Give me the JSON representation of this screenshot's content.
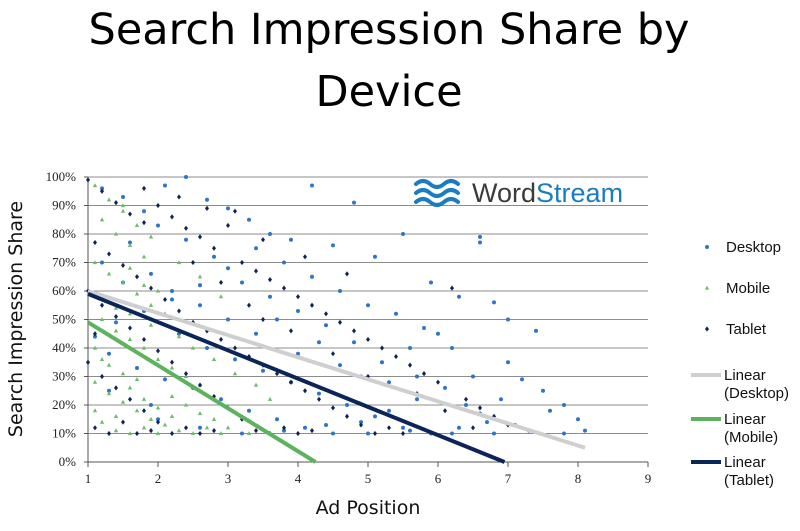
{
  "chart_data": {
    "type": "scatter",
    "title_lines": [
      "Search Impression Share by",
      "Device"
    ],
    "xlabel": "Ad Position",
    "ylabel": "Search Impression Share",
    "xlim": [
      1,
      9
    ],
    "ylim": [
      0,
      100
    ],
    "x_ticks": [
      "1",
      "2",
      "3",
      "4",
      "5",
      "6",
      "7",
      "8",
      "9"
    ],
    "y_ticks": [
      "0%",
      "10%",
      "20%",
      "30%",
      "40%",
      "50%",
      "60%",
      "70%",
      "80%",
      "90%",
      "100%"
    ],
    "grid": true,
    "legend_position": "right",
    "colors": {
      "desktop": "#2e75c8",
      "mobile": "#6cbd6c",
      "tablet": "#0e2452",
      "linear_desktop": "#cfcfcf",
      "linear_mobile": "#5db35d",
      "linear_tablet": "#0b2558",
      "grid": "#8c8c8c"
    },
    "series": [
      {
        "name": "Desktop",
        "kind": "points",
        "marker": "circle",
        "points": [
          [
            1.2,
            96
          ],
          [
            1.5,
            93
          ],
          [
            1.8,
            88
          ],
          [
            2.1,
            97
          ],
          [
            2.4,
            100
          ],
          [
            2.7,
            92
          ],
          [
            3.0,
            89
          ],
          [
            3.3,
            85
          ],
          [
            3.6,
            80
          ],
          [
            3.9,
            78
          ],
          [
            4.2,
            97
          ],
          [
            4.5,
            76
          ],
          [
            4.8,
            91
          ],
          [
            5.1,
            72
          ],
          [
            5.5,
            80
          ],
          [
            5.9,
            63
          ],
          [
            6.3,
            58
          ],
          [
            6.6,
            79
          ],
          [
            6.6,
            77
          ],
          [
            6.8,
            56
          ],
          [
            7.0,
            50
          ],
          [
            7.4,
            46
          ],
          [
            7.0,
            35
          ],
          [
            7.2,
            29
          ],
          [
            7.5,
            25
          ],
          [
            7.8,
            20
          ],
          [
            8.0,
            15
          ],
          [
            8.1,
            11
          ],
          [
            7.6,
            18
          ],
          [
            6.9,
            22
          ],
          [
            6.5,
            30
          ],
          [
            6.2,
            40
          ],
          [
            5.8,
            47
          ],
          [
            5.4,
            52
          ],
          [
            5.0,
            55
          ],
          [
            4.6,
            60
          ],
          [
            4.2,
            65
          ],
          [
            3.8,
            70
          ],
          [
            3.4,
            75
          ],
          [
            3.0,
            68
          ],
          [
            2.6,
            62
          ],
          [
            2.2,
            57
          ],
          [
            1.8,
            53
          ],
          [
            1.4,
            49
          ],
          [
            1.1,
            44
          ],
          [
            1.3,
            38
          ],
          [
            1.7,
            33
          ],
          [
            2.1,
            29
          ],
          [
            2.5,
            26
          ],
          [
            2.9,
            22
          ],
          [
            3.3,
            18
          ],
          [
            3.7,
            15
          ],
          [
            4.1,
            12
          ],
          [
            4.5,
            10
          ],
          [
            4.9,
            14
          ],
          [
            5.3,
            18
          ],
          [
            5.7,
            22
          ],
          [
            6.1,
            26
          ],
          [
            6.4,
            20
          ],
          [
            6.7,
            14
          ],
          [
            5.2,
            35
          ],
          [
            4.8,
            42
          ],
          [
            4.4,
            48
          ],
          [
            4.0,
            53
          ],
          [
            3.6,
            58
          ],
          [
            3.2,
            63
          ],
          [
            2.8,
            72
          ],
          [
            2.4,
            78
          ],
          [
            2.0,
            83
          ],
          [
            1.6,
            77
          ],
          [
            1.2,
            70
          ],
          [
            1.5,
            63
          ],
          [
            1.9,
            66
          ],
          [
            2.3,
            45
          ],
          [
            2.7,
            40
          ],
          [
            3.1,
            36
          ],
          [
            3.5,
            32
          ],
          [
            3.9,
            28
          ],
          [
            4.3,
            24
          ],
          [
            4.7,
            20
          ],
          [
            5.1,
            16
          ],
          [
            5.5,
            12
          ],
          [
            5.9,
            10
          ],
          [
            6.3,
            12
          ],
          [
            6.0,
            45
          ],
          [
            5.6,
            40
          ],
          [
            4.9,
            30
          ],
          [
            4.6,
            34
          ],
          [
            3.4,
            45
          ],
          [
            3.0,
            50
          ],
          [
            2.6,
            55
          ],
          [
            2.2,
            60
          ],
          [
            1.9,
            20
          ],
          [
            1.3,
            25
          ],
          [
            2.0,
            15
          ],
          [
            2.6,
            12
          ],
          [
            3.2,
            10
          ],
          [
            3.8,
            11
          ],
          [
            4.4,
            13
          ],
          [
            5.0,
            10
          ],
          [
            5.6,
            11
          ],
          [
            6.2,
            10
          ],
          [
            6.8,
            10
          ],
          [
            7.3,
            11
          ],
          [
            7.8,
            10
          ],
          [
            4.0,
            38
          ],
          [
            4.3,
            42
          ],
          [
            3.7,
            50
          ],
          [
            5.3,
            28
          ],
          [
            5.7,
            30
          ],
          [
            6.6,
            17
          ],
          [
            7.1,
            13
          ]
        ]
      },
      {
        "name": "Mobile",
        "kind": "points",
        "marker": "triangle",
        "points": [
          [
            1.1,
            97
          ],
          [
            1.3,
            92
          ],
          [
            1.5,
            88
          ],
          [
            1.2,
            85
          ],
          [
            1.4,
            80
          ],
          [
            1.6,
            76
          ],
          [
            1.8,
            72
          ],
          [
            1.1,
            70
          ],
          [
            1.3,
            66
          ],
          [
            1.5,
            63
          ],
          [
            1.7,
            59
          ],
          [
            1.9,
            55
          ],
          [
            2.1,
            52
          ],
          [
            1.2,
            50
          ],
          [
            1.4,
            46
          ],
          [
            1.6,
            43
          ],
          [
            1.8,
            40
          ],
          [
            2.0,
            36
          ],
          [
            2.2,
            33
          ],
          [
            2.4,
            30
          ],
          [
            2.6,
            27
          ],
          [
            1.1,
            28
          ],
          [
            1.3,
            24
          ],
          [
            1.5,
            21
          ],
          [
            1.7,
            18
          ],
          [
            1.9,
            15
          ],
          [
            2.1,
            13
          ],
          [
            2.3,
            11
          ],
          [
            2.5,
            10
          ],
          [
            2.7,
            12
          ],
          [
            2.9,
            10
          ],
          [
            1.2,
            14
          ],
          [
            1.4,
            11
          ],
          [
            1.6,
            10
          ],
          [
            1.8,
            12
          ],
          [
            2.0,
            10
          ],
          [
            1.3,
            34
          ],
          [
            1.5,
            31
          ],
          [
            1.7,
            29
          ],
          [
            2.2,
            23
          ],
          [
            2.4,
            20
          ],
          [
            2.6,
            17
          ],
          [
            2.8,
            15
          ],
          [
            3.0,
            12
          ],
          [
            3.3,
            10
          ],
          [
            1.2,
            58
          ],
          [
            1.4,
            54
          ],
          [
            1.6,
            52
          ],
          [
            1.9,
            48
          ],
          [
            2.3,
            44
          ],
          [
            2.5,
            40
          ],
          [
            2.8,
            36
          ],
          [
            3.1,
            31
          ],
          [
            3.4,
            27
          ],
          [
            3.6,
            22
          ],
          [
            1.5,
            90
          ],
          [
            1.7,
            83
          ],
          [
            1.9,
            79
          ],
          [
            2.3,
            70
          ],
          [
            2.6,
            65
          ],
          [
            2.9,
            58
          ],
          [
            1.1,
            40
          ],
          [
            1.2,
            36
          ],
          [
            1.1,
            18
          ],
          [
            1.4,
            16
          ],
          [
            1.6,
            26
          ],
          [
            1.8,
            22
          ],
          [
            2.0,
            19
          ],
          [
            2.2,
            16
          ],
          [
            1.6,
            68
          ],
          [
            1.8,
            62
          ],
          [
            2.0,
            60
          ]
        ]
      },
      {
        "name": "Tablet",
        "kind": "points",
        "marker": "diamond",
        "points": [
          [
            1.0,
            99
          ],
          [
            1.2,
            95
          ],
          [
            1.4,
            91
          ],
          [
            1.6,
            87
          ],
          [
            1.8,
            84
          ],
          [
            2.0,
            90
          ],
          [
            2.2,
            86
          ],
          [
            2.4,
            82
          ],
          [
            2.6,
            79
          ],
          [
            2.8,
            75
          ],
          [
            3.0,
            83
          ],
          [
            3.2,
            70
          ],
          [
            3.4,
            67
          ],
          [
            3.6,
            64
          ],
          [
            3.8,
            61
          ],
          [
            4.0,
            58
          ],
          [
            4.2,
            55
          ],
          [
            4.4,
            52
          ],
          [
            4.6,
            49
          ],
          [
            4.8,
            46
          ],
          [
            5.0,
            43
          ],
          [
            5.2,
            40
          ],
          [
            5.4,
            37
          ],
          [
            5.6,
            34
          ],
          [
            5.8,
            31
          ],
          [
            6.0,
            28
          ],
          [
            6.2,
            61
          ],
          [
            6.4,
            22
          ],
          [
            6.6,
            19
          ],
          [
            6.8,
            16
          ],
          [
            7.0,
            13
          ],
          [
            1.1,
            77
          ],
          [
            1.3,
            73
          ],
          [
            1.5,
            69
          ],
          [
            1.7,
            65
          ],
          [
            1.9,
            61
          ],
          [
            2.1,
            57
          ],
          [
            2.3,
            53
          ],
          [
            2.5,
            49
          ],
          [
            2.7,
            46
          ],
          [
            2.9,
            43
          ],
          [
            3.1,
            40
          ],
          [
            3.3,
            37
          ],
          [
            3.5,
            34
          ],
          [
            3.7,
            31
          ],
          [
            3.9,
            28
          ],
          [
            4.1,
            25
          ],
          [
            4.3,
            22
          ],
          [
            4.5,
            19
          ],
          [
            4.7,
            16
          ],
          [
            4.9,
            13
          ],
          [
            5.1,
            10
          ],
          [
            5.3,
            12
          ],
          [
            5.5,
            10
          ],
          [
            1.2,
            55
          ],
          [
            1.4,
            51
          ],
          [
            1.6,
            47
          ],
          [
            1.8,
            43
          ],
          [
            2.0,
            39
          ],
          [
            2.2,
            35
          ],
          [
            2.4,
            31
          ],
          [
            2.6,
            27
          ],
          [
            2.8,
            23
          ],
          [
            3.0,
            19
          ],
          [
            3.2,
            15
          ],
          [
            3.4,
            11
          ],
          [
            3.6,
            10
          ],
          [
            3.8,
            12
          ],
          [
            4.0,
            10
          ],
          [
            4.2,
            11
          ],
          [
            1.0,
            35
          ],
          [
            1.2,
            30
          ],
          [
            1.4,
            26
          ],
          [
            1.6,
            22
          ],
          [
            1.8,
            18
          ],
          [
            2.0,
            14
          ],
          [
            2.2,
            10
          ],
          [
            2.4,
            12
          ],
          [
            2.6,
            10
          ],
          [
            2.8,
            11
          ],
          [
            1.1,
            12
          ],
          [
            1.3,
            10
          ],
          [
            1.5,
            14
          ],
          [
            1.7,
            10
          ],
          [
            1.9,
            11
          ],
          [
            3.3,
            55
          ],
          [
            3.5,
            50
          ],
          [
            3.9,
            46
          ],
          [
            4.5,
            38
          ],
          [
            5.0,
            30
          ],
          [
            5.7,
            24
          ],
          [
            6.1,
            18
          ],
          [
            6.5,
            12
          ],
          [
            2.5,
            70
          ],
          [
            2.9,
            63
          ],
          [
            1.8,
            96
          ],
          [
            2.3,
            93
          ],
          [
            2.7,
            89
          ],
          [
            3.1,
            88
          ],
          [
            3.5,
            78
          ],
          [
            4.1,
            72
          ],
          [
            4.7,
            66
          ],
          [
            1.0,
            60
          ],
          [
            1.1,
            45
          ]
        ]
      },
      {
        "name": "Linear\n(Desktop)",
        "kind": "line",
        "points": [
          [
            1.0,
            60
          ],
          [
            8.1,
            5
          ]
        ]
      },
      {
        "name": "Linear\n(Mobile)",
        "kind": "line",
        "points": [
          [
            1.0,
            49
          ],
          [
            4.25,
            0
          ]
        ]
      },
      {
        "name": "Linear\n(Tablet)",
        "kind": "line",
        "points": [
          [
            1.0,
            59
          ],
          [
            6.95,
            0
          ]
        ]
      }
    ],
    "legend": [
      {
        "label": "Desktop",
        "series": 0
      },
      {
        "label": "Mobile",
        "series": 1
      },
      {
        "label": "Tablet",
        "series": 2
      },
      {
        "label_lines": [
          "Linear",
          "(Desktop)"
        ],
        "series": 3
      },
      {
        "label_lines": [
          "Linear",
          "(Mobile)"
        ],
        "series": 4
      },
      {
        "label_lines": [
          "Linear",
          "(Tablet)"
        ],
        "series": 5
      }
    ]
  },
  "logo": {
    "text_word": "Word",
    "text_stream": "Stream"
  }
}
